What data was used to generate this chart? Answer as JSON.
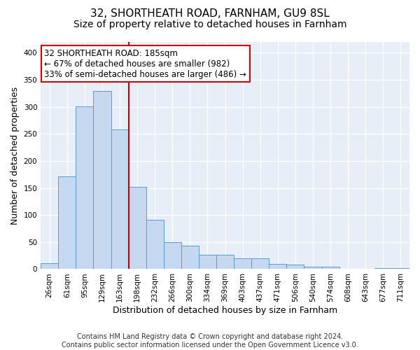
{
  "title1": "32, SHORTHEATH ROAD, FARNHAM, GU9 8SL",
  "title2": "Size of property relative to detached houses in Farnham",
  "xlabel": "Distribution of detached houses by size in Farnham",
  "ylabel": "Number of detached properties",
  "categories": [
    "26sqm",
    "61sqm",
    "95sqm",
    "129sqm",
    "163sqm",
    "198sqm",
    "232sqm",
    "266sqm",
    "300sqm",
    "334sqm",
    "369sqm",
    "403sqm",
    "437sqm",
    "471sqm",
    "506sqm",
    "540sqm",
    "574sqm",
    "608sqm",
    "643sqm",
    "677sqm",
    "711sqm"
  ],
  "bar_values": [
    11,
    172,
    301,
    330,
    258,
    152,
    91,
    50,
    43,
    27,
    27,
    20,
    20,
    10,
    9,
    5,
    4,
    1,
    1,
    2,
    2
  ],
  "bar_color": "#c5d8ef",
  "bar_edge_color": "#5b9bd5",
  "vline_x_index": 4.5,
  "vline_color": "#cc0000",
  "annotation_line1": "32 SHORTHEATH ROAD: 185sqm",
  "annotation_line2": "← 67% of detached houses are smaller (982)",
  "annotation_line3": "33% of semi-detached houses are larger (486) →",
  "annotation_box_color": "white",
  "annotation_box_edge_color": "#cc0000",
  "ylim": [
    0,
    420
  ],
  "yticks": [
    0,
    50,
    100,
    150,
    200,
    250,
    300,
    350,
    400
  ],
  "footnote": "Contains HM Land Registry data © Crown copyright and database right 2024.\nContains public sector information licensed under the Open Government Licence v3.0.",
  "bg_color": "#e8eef7",
  "grid_color": "white",
  "title_fontsize": 11,
  "subtitle_fontsize": 10,
  "axis_label_fontsize": 9,
  "tick_fontsize": 7.5,
  "footnote_fontsize": 7,
  "annotation_fontsize": 8.5
}
